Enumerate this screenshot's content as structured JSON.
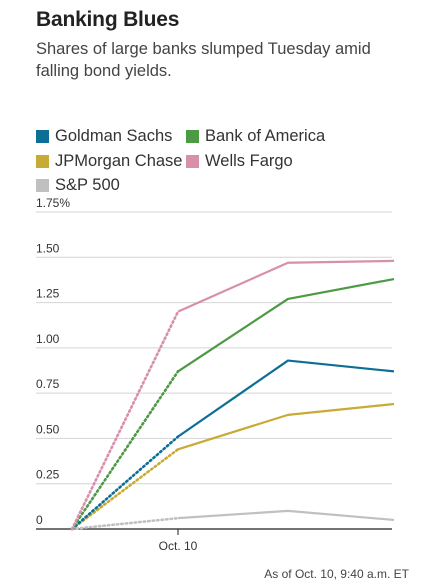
{
  "chart_data": {
    "type": "line",
    "title": "Banking Blues",
    "subtitle": "Shares of large banks slumped Tuesday amid falling bond yields.",
    "x": [
      "",
      "Oct. 10",
      "",
      ""
    ],
    "series": [
      {
        "name": "Goldman Sachs",
        "color": "#0e6f96",
        "values": [
          0,
          0.51,
          0.93,
          0.87
        ]
      },
      {
        "name": "Bank of America",
        "color": "#4c9a44",
        "values": [
          0,
          0.87,
          1.27,
          1.38
        ]
      },
      {
        "name": "JPMorgan Chase",
        "color": "#c7ab35",
        "values": [
          0,
          0.44,
          0.63,
          0.69
        ]
      },
      {
        "name": "Wells Fargo",
        "color": "#d88fab",
        "values": [
          0,
          1.2,
          1.47,
          1.48
        ]
      },
      {
        "name": "S&P 500",
        "color": "#c0c0c0",
        "values": [
          0,
          0.06,
          0.1,
          0.05
        ]
      }
    ],
    "dotted_segment": "from first to second point",
    "yticks": [
      "0",
      "0.25",
      "0.50",
      "0.75",
      "1.00",
      "1.25",
      "1.50",
      "1.75%"
    ],
    "ylim": [
      0,
      1.75
    ],
    "grid": true,
    "legend_position": "top",
    "footnote": "As of Oct. 10, 9:40 a.m. ET"
  }
}
